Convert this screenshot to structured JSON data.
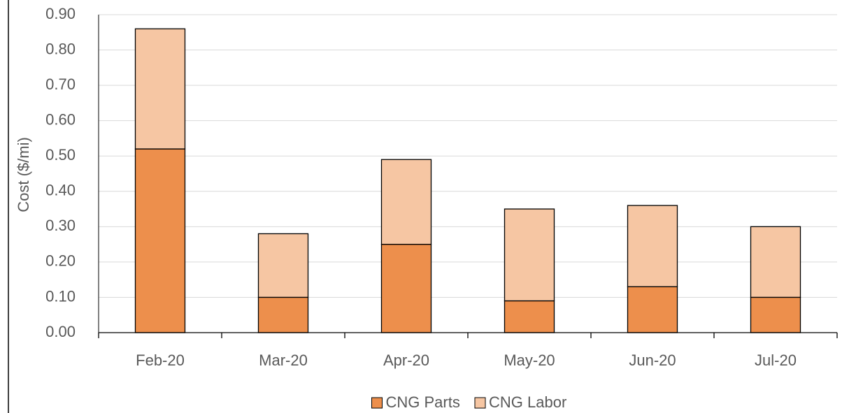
{
  "chart_data": {
    "type": "stacked_bar",
    "y_label": "Cost ($/mi)",
    "categories": [
      "Feb-20",
      "Mar-20",
      "Apr-20",
      "May-20",
      "Jun-20",
      "Jul-20"
    ],
    "series": [
      {
        "name": "CNG Parts",
        "color": "#ed8f4c",
        "values": [
          0.52,
          0.1,
          0.25,
          0.09,
          0.13,
          0.1
        ]
      },
      {
        "name": "CNG Labor",
        "color": "#f6c6a3",
        "values": [
          0.34,
          0.18,
          0.24,
          0.26,
          0.23,
          0.2
        ]
      }
    ],
    "ylim": [
      0,
      0.9
    ],
    "yticks": [
      {
        "value": 0,
        "label": "0.00"
      },
      {
        "value": 0.1,
        "label": "0.10"
      },
      {
        "value": 0.2,
        "label": "0.20"
      },
      {
        "value": 0.3,
        "label": "0.30"
      },
      {
        "value": 0.4,
        "label": "0.40"
      },
      {
        "value": 0.5,
        "label": "0.50"
      },
      {
        "value": 0.6,
        "label": "0.60"
      },
      {
        "value": 0.7,
        "label": "0.70"
      },
      {
        "value": 0.8,
        "label": "0.80"
      },
      {
        "value": 0.9,
        "label": "0.90"
      }
    ],
    "grid": true,
    "legend": "bottom"
  }
}
